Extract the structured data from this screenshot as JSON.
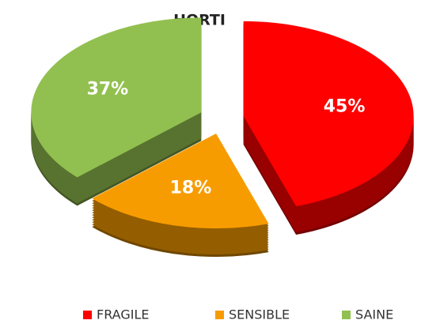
{
  "chart_data": {
    "type": "pie",
    "title": "HORTI",
    "categories": [
      "FRAGILE",
      "SENSIBLE",
      "SAINE"
    ],
    "values": [
      45,
      18,
      37
    ],
    "value_labels": [
      "45%",
      "18%",
      "37%"
    ],
    "colors": [
      "#ff0000",
      "#f79c00",
      "#92c050"
    ],
    "legend": "bottom"
  }
}
